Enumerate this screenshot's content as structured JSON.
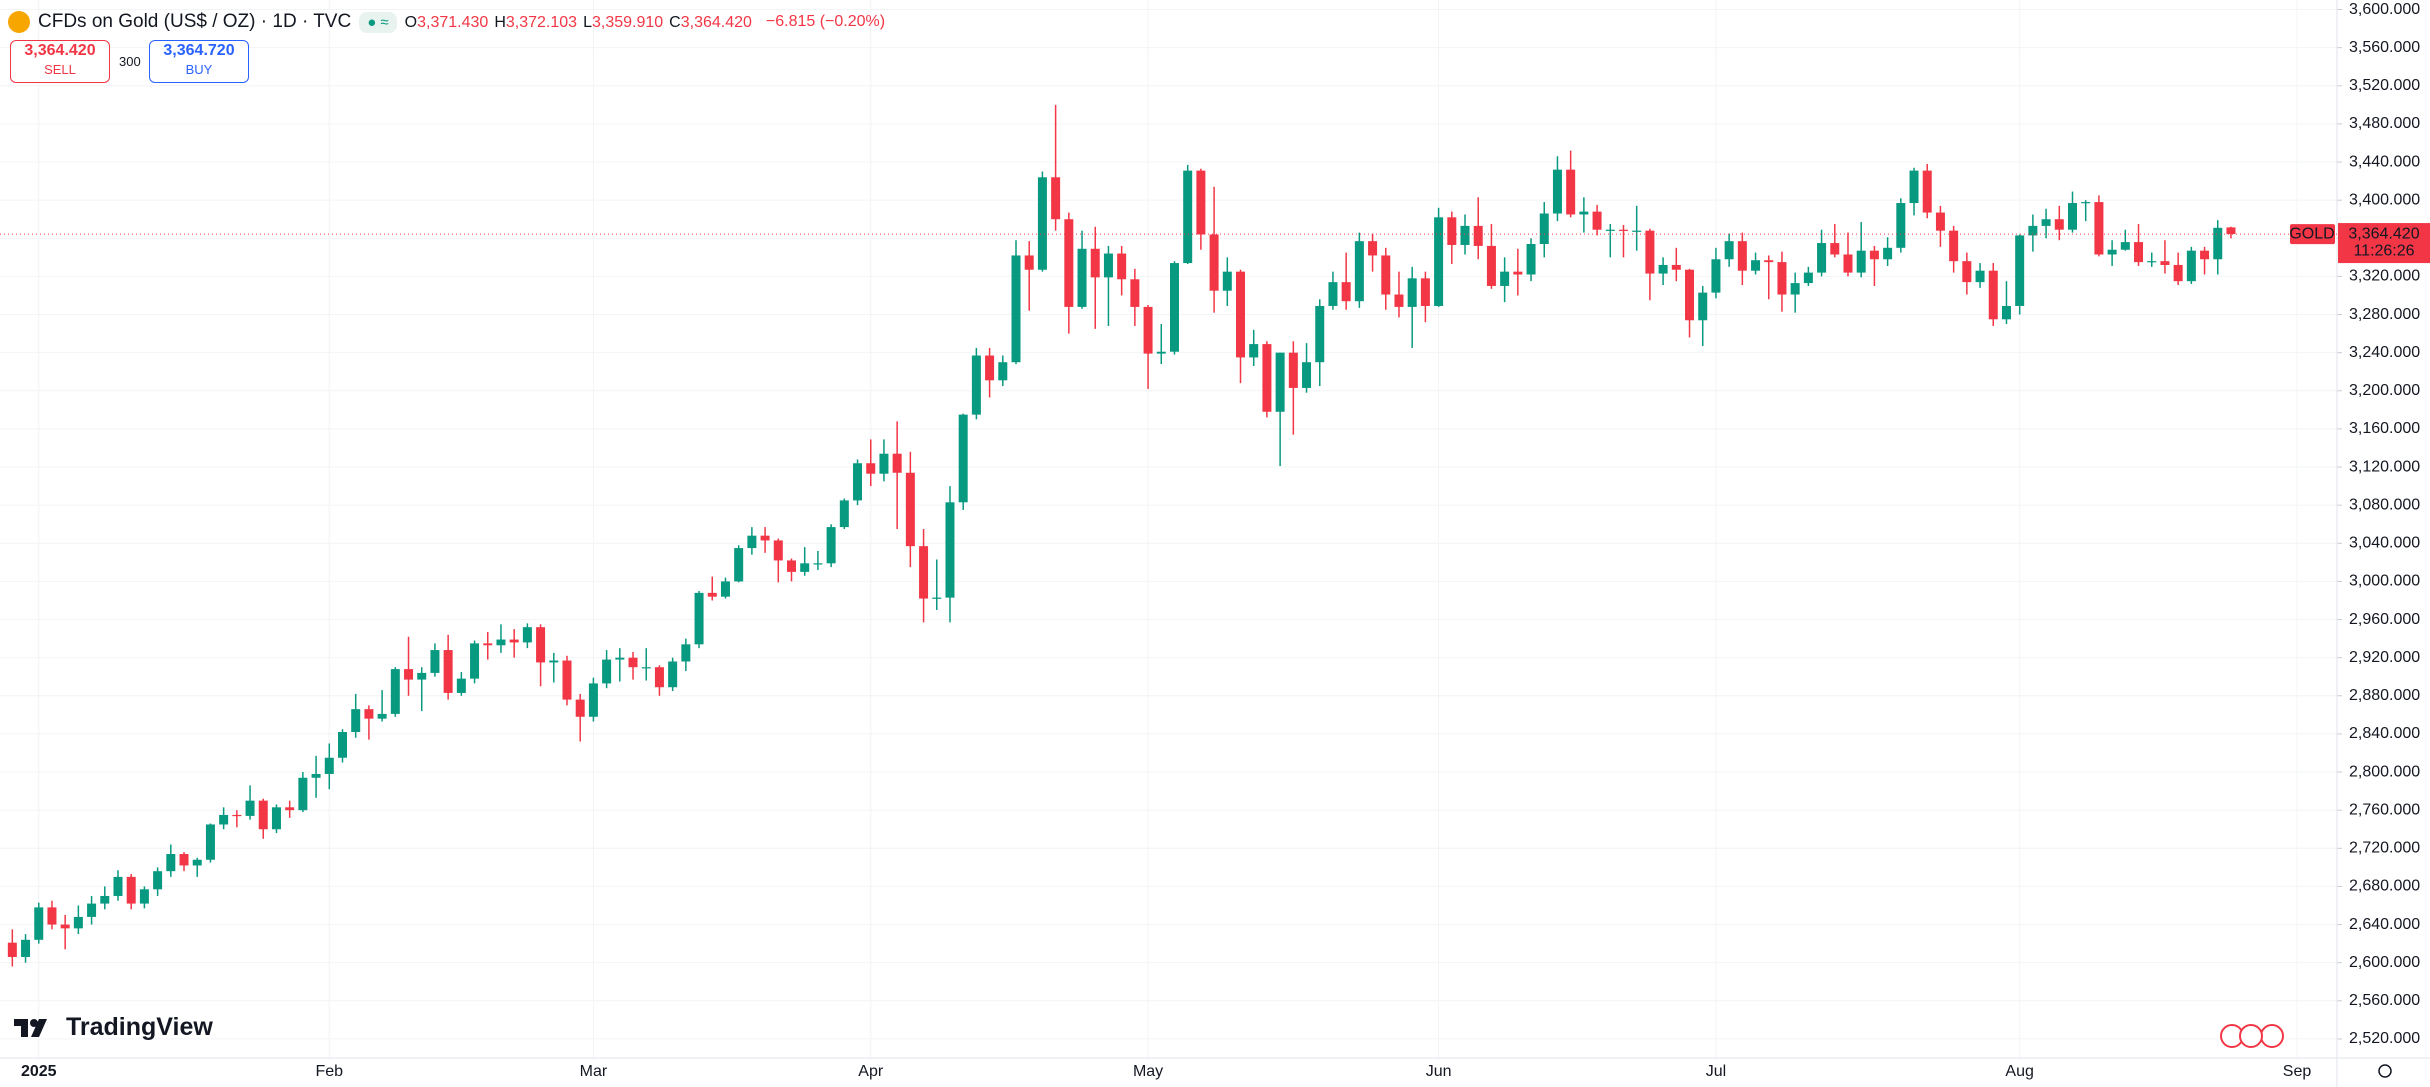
{
  "header": {
    "title": "CFDs on Gold (US$ / OZ) · 1D · TVC",
    "ohlc_legend": [
      {
        "key": "O",
        "value": "3,371.430"
      },
      {
        "key": "H",
        "value": "3,372.103"
      },
      {
        "key": "L",
        "value": "3,359.910"
      },
      {
        "key": "C",
        "value": "3,364.420"
      }
    ],
    "change": "−6.815 (−0.20%)",
    "sell": {
      "price": "3,364.420",
      "label": "SELL"
    },
    "spread": "300",
    "buy": {
      "price": "3,364.720",
      "label": "BUY"
    }
  },
  "brand": "TradingView",
  "chart_data": {
    "type": "candlestick",
    "up_color": "#089981",
    "down_color": "#f23645",
    "grid": true,
    "ylim": [
      2500,
      3610
    ],
    "yticks": [
      {
        "value": 2520,
        "label": "2,520.000"
      },
      {
        "value": 2560,
        "label": "2,560.000"
      },
      {
        "value": 2600,
        "label": "2,600.000"
      },
      {
        "value": 2640,
        "label": "2,640.000"
      },
      {
        "value": 2680,
        "label": "2,680.000"
      },
      {
        "value": 2720,
        "label": "2,720.000"
      },
      {
        "value": 2760,
        "label": "2,760.000"
      },
      {
        "value": 2800,
        "label": "2,800.000"
      },
      {
        "value": 2840,
        "label": "2,840.000"
      },
      {
        "value": 2880,
        "label": "2,880.000"
      },
      {
        "value": 2920,
        "label": "2,920.000"
      },
      {
        "value": 2960,
        "label": "2,960.000"
      },
      {
        "value": 3000,
        "label": "3,000.000"
      },
      {
        "value": 3040,
        "label": "3,040.000"
      },
      {
        "value": 3080,
        "label": "3,080.000"
      },
      {
        "value": 3120,
        "label": "3,120.000"
      },
      {
        "value": 3160,
        "label": "3,160.000"
      },
      {
        "value": 3200,
        "label": "3,200.000"
      },
      {
        "value": 3240,
        "label": "3,240.000"
      },
      {
        "value": 3280,
        "label": "3,280.000"
      },
      {
        "value": 3320,
        "label": "3,320.000"
      },
      {
        "value": 3360,
        "label": "3,360.000"
      },
      {
        "value": 3400,
        "label": "3,400.000"
      },
      {
        "value": 3440,
        "label": "3,440.000"
      },
      {
        "value": 3480,
        "label": "3,480.000"
      },
      {
        "value": 3520,
        "label": "3,520.000"
      },
      {
        "value": 3560,
        "label": "3,560.000"
      },
      {
        "value": 3600,
        "label": "3,600.000"
      }
    ],
    "last_price": {
      "value": 3364.42,
      "label": "3,364.420"
    },
    "symbol_tag": "GOLD",
    "countdown": "11:26:26",
    "categories": [
      null,
      null,
      "2025",
      null,
      null,
      null,
      null,
      null,
      null,
      null,
      null,
      null,
      null,
      null,
      null,
      null,
      null,
      null,
      null,
      null,
      null,
      null,
      null,
      null,
      "Feb",
      null,
      null,
      null,
      null,
      null,
      null,
      null,
      null,
      null,
      null,
      null,
      null,
      null,
      null,
      null,
      null,
      null,
      null,
      null,
      "Mar",
      null,
      null,
      null,
      null,
      null,
      null,
      null,
      null,
      null,
      null,
      null,
      null,
      null,
      null,
      null,
      null,
      null,
      null,
      null,
      null,
      "Apr",
      null,
      null,
      null,
      null,
      null,
      null,
      null,
      null,
      null,
      null,
      null,
      null,
      null,
      null,
      null,
      null,
      null,
      null,
      null,
      null,
      "May",
      null,
      null,
      null,
      null,
      null,
      null,
      null,
      null,
      null,
      null,
      null,
      null,
      null,
      null,
      null,
      null,
      null,
      null,
      null,
      null,
      null,
      "Jun",
      null,
      null,
      null,
      null,
      null,
      null,
      null,
      null,
      null,
      null,
      null,
      null,
      null,
      null,
      null,
      null,
      null,
      null,
      null,
      null,
      "Jul",
      null,
      null,
      null,
      null,
      null,
      null,
      null,
      null,
      null,
      null,
      null,
      null,
      null,
      null,
      null,
      null,
      null,
      null,
      null,
      null,
      null,
      null,
      "Aug",
      null,
      null,
      null,
      null,
      null,
      null,
      null,
      null,
      null,
      null,
      null,
      null,
      null,
      null,
      null,
      null,
      null,
      null,
      null,
      null,
      "Sep"
    ],
    "values": [
      [
        2621,
        2635,
        2596,
        2606
      ],
      [
        2606,
        2630,
        2600,
        2624
      ],
      [
        2624,
        2663,
        2620,
        2658
      ],
      [
        2658,
        2665,
        2635,
        2640
      ],
      [
        2640,
        2650,
        2614,
        2636
      ],
      [
        2636,
        2660,
        2630,
        2648
      ],
      [
        2648,
        2670,
        2640,
        2662
      ],
      [
        2662,
        2680,
        2656,
        2670
      ],
      [
        2670,
        2697,
        2665,
        2690
      ],
      [
        2690,
        2693,
        2656,
        2662
      ],
      [
        2662,
        2680,
        2657,
        2677
      ],
      [
        2677,
        2700,
        2670,
        2696
      ],
      [
        2696,
        2724,
        2690,
        2714
      ],
      [
        2714,
        2716,
        2696,
        2702
      ],
      [
        2702,
        2710,
        2690,
        2708
      ],
      [
        2708,
        2746,
        2705,
        2745
      ],
      [
        2745,
        2763,
        2740,
        2755
      ],
      [
        2755,
        2760,
        2742,
        2754
      ],
      [
        2754,
        2786,
        2750,
        2770
      ],
      [
        2770,
        2772,
        2730,
        2740
      ],
      [
        2740,
        2766,
        2736,
        2763
      ],
      [
        2763,
        2770,
        2752,
        2760
      ],
      [
        2760,
        2800,
        2758,
        2794
      ],
      [
        2794,
        2817,
        2773,
        2798
      ],
      [
        2798,
        2830,
        2782,
        2815
      ],
      [
        2815,
        2845,
        2810,
        2842
      ],
      [
        2842,
        2882,
        2836,
        2866
      ],
      [
        2866,
        2870,
        2834,
        2856
      ],
      [
        2856,
        2886,
        2853,
        2861
      ],
      [
        2861,
        2910,
        2858,
        2908
      ],
      [
        2908,
        2942,
        2880,
        2897
      ],
      [
        2897,
        2910,
        2864,
        2904
      ],
      [
        2904,
        2935,
        2900,
        2928
      ],
      [
        2928,
        2944,
        2876,
        2883
      ],
      [
        2883,
        2905,
        2880,
        2898
      ],
      [
        2898,
        2938,
        2893,
        2935
      ],
      [
        2935,
        2947,
        2918,
        2933
      ],
      [
        2933,
        2955,
        2925,
        2939
      ],
      [
        2939,
        2950,
        2920,
        2936
      ],
      [
        2936,
        2956,
        2930,
        2952
      ],
      [
        2952,
        2955,
        2890,
        2915
      ],
      [
        2915,
        2925,
        2894,
        2917
      ],
      [
        2917,
        2922,
        2870,
        2876
      ],
      [
        2876,
        2882,
        2832,
        2858
      ],
      [
        2858,
        2899,
        2853,
        2893
      ],
      [
        2893,
        2928,
        2888,
        2918
      ],
      [
        2918,
        2930,
        2895,
        2920
      ],
      [
        2920,
        2926,
        2897,
        2910
      ],
      [
        2910,
        2930,
        2896,
        2910
      ],
      [
        2910,
        2912,
        2880,
        2889
      ],
      [
        2889,
        2920,
        2885,
        2916
      ],
      [
        2916,
        2940,
        2906,
        2934
      ],
      [
        2934,
        2990,
        2930,
        2988
      ],
      [
        2988,
        3005,
        2980,
        2984
      ],
      [
        2984,
        3004,
        2982,
        3000
      ],
      [
        3000,
        3038,
        2999,
        3035
      ],
      [
        3035,
        3057,
        3028,
        3048
      ],
      [
        3048,
        3057,
        3030,
        3043
      ],
      [
        3043,
        3045,
        2999,
        3022
      ],
      [
        3022,
        3024,
        3000,
        3010
      ],
      [
        3010,
        3036,
        3006,
        3019
      ],
      [
        3019,
        3032,
        3012,
        3019
      ],
      [
        3019,
        3060,
        3015,
        3057
      ],
      [
        3057,
        3087,
        3055,
        3085
      ],
      [
        3085,
        3128,
        3080,
        3124
      ],
      [
        3124,
        3149,
        3100,
        3113
      ],
      [
        3113,
        3149,
        3105,
        3134
      ],
      [
        3134,
        3168,
        3055,
        3114
      ],
      [
        3114,
        3136,
        3015,
        3037
      ],
      [
        3037,
        3055,
        2957,
        2982
      ],
      [
        2982,
        3023,
        2970,
        2983
      ],
      [
        2983,
        3100,
        2957,
        3083
      ],
      [
        3083,
        3176,
        3075,
        3175
      ],
      [
        3175,
        3245,
        3170,
        3237
      ],
      [
        3237,
        3245,
        3193,
        3211
      ],
      [
        3211,
        3237,
        3205,
        3230
      ],
      [
        3230,
        3358,
        3228,
        3342
      ],
      [
        3342,
        3357,
        3284,
        3327
      ],
      [
        3327,
        3430,
        3325,
        3424
      ],
      [
        3424,
        3500,
        3368,
        3380
      ],
      [
        3380,
        3387,
        3260,
        3288
      ],
      [
        3288,
        3368,
        3286,
        3349
      ],
      [
        3349,
        3372,
        3265,
        3319
      ],
      [
        3319,
        3352,
        3268,
        3344
      ],
      [
        3344,
        3352,
        3300,
        3317
      ],
      [
        3317,
        3328,
        3268,
        3288
      ],
      [
        3288,
        3290,
        3202,
        3239
      ],
      [
        3239,
        3270,
        3228,
        3241
      ],
      [
        3241,
        3336,
        3238,
        3334
      ],
      [
        3334,
        3437,
        3333,
        3431
      ],
      [
        3431,
        3433,
        3348,
        3364
      ],
      [
        3364,
        3414,
        3282,
        3305
      ],
      [
        3305,
        3340,
        3289,
        3325
      ],
      [
        3325,
        3327,
        3208,
        3235
      ],
      [
        3235,
        3264,
        3226,
        3249
      ],
      [
        3249,
        3252,
        3172,
        3178
      ],
      [
        3178,
        3240,
        3121,
        3240
      ],
      [
        3240,
        3252,
        3154,
        3203
      ],
      [
        3203,
        3250,
        3198,
        3230
      ],
      [
        3230,
        3296,
        3205,
        3289
      ],
      [
        3289,
        3325,
        3285,
        3314
      ],
      [
        3314,
        3345,
        3285,
        3294
      ],
      [
        3294,
        3366,
        3287,
        3357
      ],
      [
        3357,
        3365,
        3325,
        3342
      ],
      [
        3342,
        3350,
        3285,
        3301
      ],
      [
        3301,
        3325,
        3277,
        3288
      ],
      [
        3288,
        3330,
        3245,
        3318
      ],
      [
        3318,
        3325,
        3272,
        3289
      ],
      [
        3289,
        3392,
        3288,
        3382
      ],
      [
        3382,
        3388,
        3333,
        3353
      ],
      [
        3353,
        3385,
        3343,
        3373
      ],
      [
        3373,
        3403,
        3338,
        3352
      ],
      [
        3352,
        3375,
        3307,
        3310
      ],
      [
        3310,
        3340,
        3293,
        3325
      ],
      [
        3325,
        3349,
        3300,
        3322
      ],
      [
        3322,
        3360,
        3315,
        3354
      ],
      [
        3354,
        3398,
        3340,
        3386
      ],
      [
        3386,
        3446,
        3378,
        3432
      ],
      [
        3432,
        3452,
        3382,
        3385
      ],
      [
        3385,
        3403,
        3366,
        3388
      ],
      [
        3388,
        3395,
        3363,
        3369
      ],
      [
        3369,
        3375,
        3340,
        3369
      ],
      [
        3369,
        3374,
        3340,
        3368
      ],
      [
        3368,
        3394,
        3347,
        3368
      ],
      [
        3368,
        3370,
        3295,
        3323
      ],
      [
        3323,
        3340,
        3311,
        3332
      ],
      [
        3332,
        3350,
        3315,
        3327
      ],
      [
        3327,
        3328,
        3256,
        3274
      ],
      [
        3274,
        3310,
        3247,
        3303
      ],
      [
        3303,
        3350,
        3297,
        3338
      ],
      [
        3338,
        3365,
        3330,
        3357
      ],
      [
        3357,
        3366,
        3311,
        3326
      ],
      [
        3326,
        3345,
        3322,
        3337
      ],
      [
        3337,
        3342,
        3296,
        3335
      ],
      [
        3335,
        3346,
        3283,
        3301
      ],
      [
        3301,
        3324,
        3282,
        3313
      ],
      [
        3313,
        3330,
        3310,
        3324
      ],
      [
        3324,
        3369,
        3320,
        3355
      ],
      [
        3355,
        3375,
        3340,
        3343
      ],
      [
        3343,
        3366,
        3320,
        3324
      ],
      [
        3324,
        3377,
        3319,
        3347
      ],
      [
        3347,
        3352,
        3310,
        3338
      ],
      [
        3338,
        3361,
        3331,
        3350
      ],
      [
        3350,
        3402,
        3345,
        3397
      ],
      [
        3397,
        3434,
        3384,
        3431
      ],
      [
        3431,
        3438,
        3381,
        3387
      ],
      [
        3387,
        3394,
        3351,
        3368
      ],
      [
        3368,
        3373,
        3324,
        3336
      ],
      [
        3336,
        3345,
        3301,
        3314
      ],
      [
        3314,
        3334,
        3308,
        3326
      ],
      [
        3326,
        3334,
        3268,
        3275
      ],
      [
        3275,
        3315,
        3270,
        3289
      ],
      [
        3289,
        3364,
        3280,
        3363
      ],
      [
        3363,
        3385,
        3346,
        3373
      ],
      [
        3373,
        3391,
        3360,
        3380
      ],
      [
        3380,
        3394,
        3358,
        3369
      ],
      [
        3369,
        3409,
        3366,
        3397
      ],
      [
        3397,
        3400,
        3378,
        3398
      ],
      [
        3398,
        3405,
        3341,
        3343
      ],
      [
        3343,
        3358,
        3331,
        3348
      ],
      [
        3348,
        3369,
        3347,
        3356
      ],
      [
        3356,
        3375,
        3331,
        3335
      ],
      [
        3335,
        3345,
        3330,
        3336
      ],
      [
        3336,
        3358,
        3323,
        3332
      ],
      [
        3332,
        3345,
        3311,
        3315
      ],
      [
        3315,
        3351,
        3312,
        3347
      ],
      [
        3347,
        3351,
        3322,
        3338
      ],
      [
        3338,
        3379,
        3322,
        3371
      ],
      [
        3371.43,
        3372.103,
        3359.91,
        3364.42
      ],
      null,
      null,
      null,
      null,
      null
    ]
  }
}
